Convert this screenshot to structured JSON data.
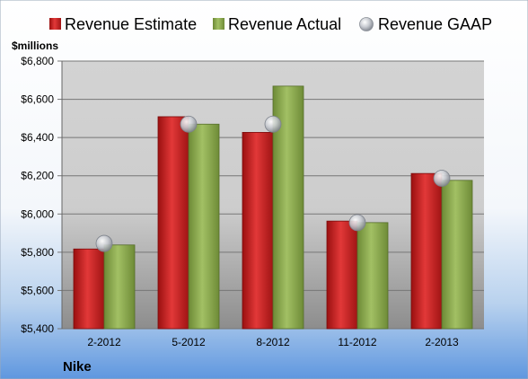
{
  "chart_data": {
    "type": "bar",
    "title": "",
    "company": "Nike",
    "ylabel": "$millions",
    "xlabel": "",
    "categories": [
      "2-2012",
      "5-2012",
      "8-2012",
      "11-2012",
      "2-2013"
    ],
    "ylim": [
      5400,
      6800
    ],
    "yticks": [
      5400,
      5600,
      5800,
      6000,
      6200,
      6400,
      6600,
      6800
    ],
    "ytick_labels": [
      "$5,400",
      "$5,600",
      "$5,800",
      "$6,000",
      "$6,200",
      "$6,400",
      "$6,600",
      "$6,800"
    ],
    "grid": true,
    "legend_position": "top",
    "series": [
      {
        "name": "Revenue Estimate",
        "kind": "bar",
        "color": "#cc1f1f",
        "values": [
          5817,
          6509,
          6427,
          5963,
          6212
        ]
      },
      {
        "name": "Revenue Actual",
        "kind": "bar",
        "color": "#86a84a",
        "values": [
          5838,
          6470,
          6669,
          5955,
          6176
        ]
      },
      {
        "name": "Revenue GAAP",
        "kind": "marker",
        "color": "#b8bcc4",
        "values": [
          5846,
          6470,
          6470,
          5955,
          6187
        ]
      }
    ]
  }
}
